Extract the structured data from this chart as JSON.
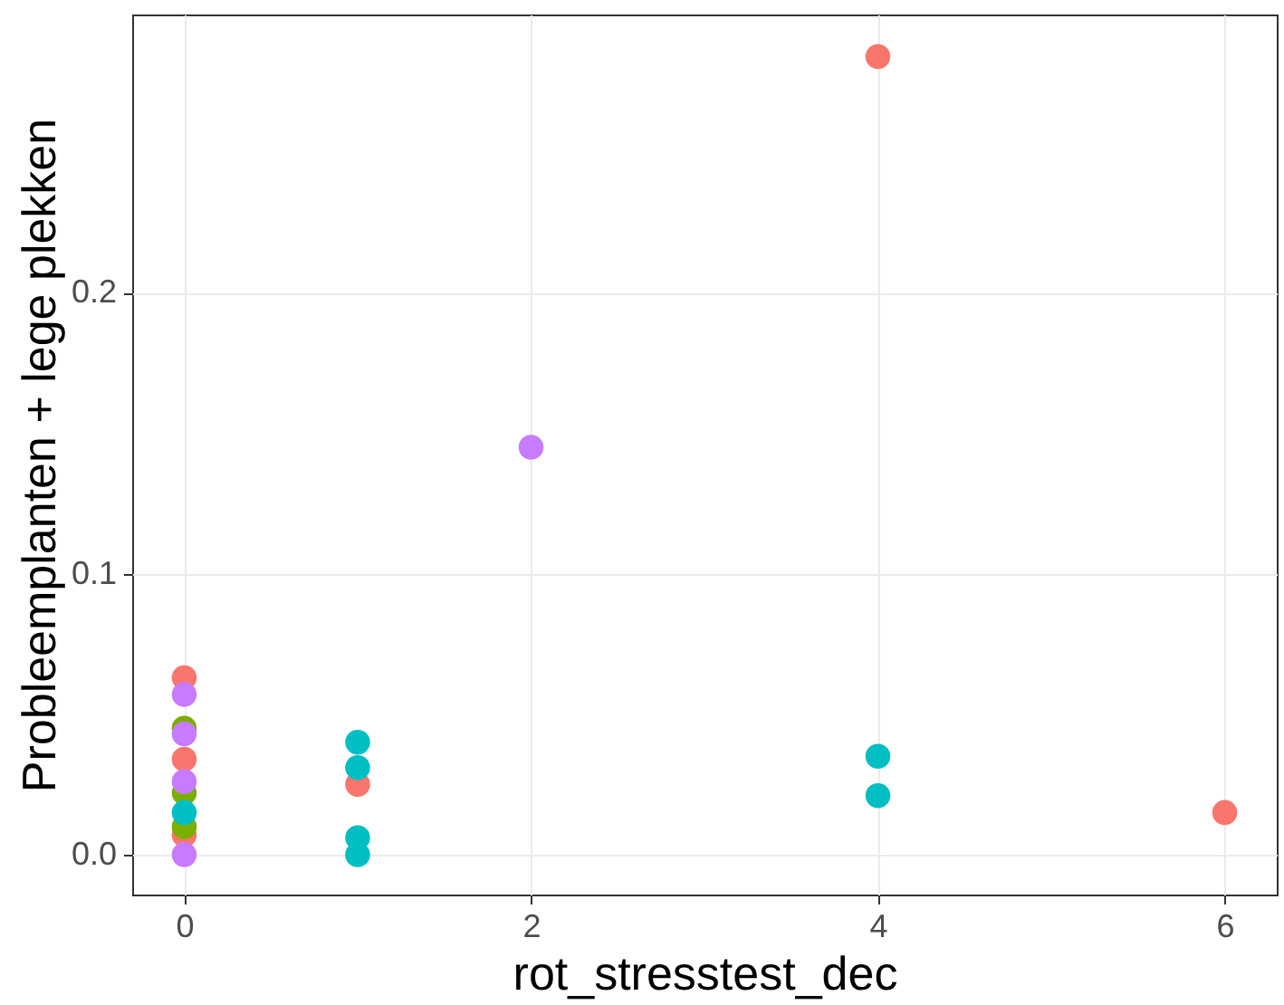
{
  "chart_data": {
    "type": "scatter",
    "xlabel": "rot_stresstest_dec",
    "ylabel": "Probleemplanten + lege plekken",
    "xlim": [
      -0.3,
      6.3
    ],
    "ylim": [
      -0.0142,
      0.299
    ],
    "xticks": [
      0,
      2,
      4,
      6
    ],
    "yticks": [
      {
        "value": 0,
        "label": "0.0"
      },
      {
        "value": 0.1,
        "label": "0.1"
      },
      {
        "value": 0.2,
        "label": "0.2"
      }
    ],
    "grid": true,
    "legend": false,
    "marker": "circle",
    "series": [
      {
        "color": "#f8766d",
        "x": [
          0,
          0,
          0,
          1,
          4,
          6
        ],
        "values": [
          0.063,
          0.034,
          0.007,
          0.025,
          0.284,
          0.015
        ]
      },
      {
        "color": "#7cae00",
        "x": [
          0,
          0,
          0
        ],
        "values": [
          0.045,
          0.022,
          0.01
        ]
      },
      {
        "color": "#00bfc4",
        "x": [
          0,
          1,
          1,
          1,
          1,
          4,
          4
        ],
        "values": [
          0.015,
          0.04,
          0.031,
          0.006,
          0.0,
          0.035,
          0.021
        ]
      },
      {
        "color": "#c77cff",
        "x": [
          0,
          0,
          0,
          0,
          2
        ],
        "values": [
          0.057,
          0.043,
          0.026,
          0.0,
          0.145
        ]
      }
    ]
  }
}
